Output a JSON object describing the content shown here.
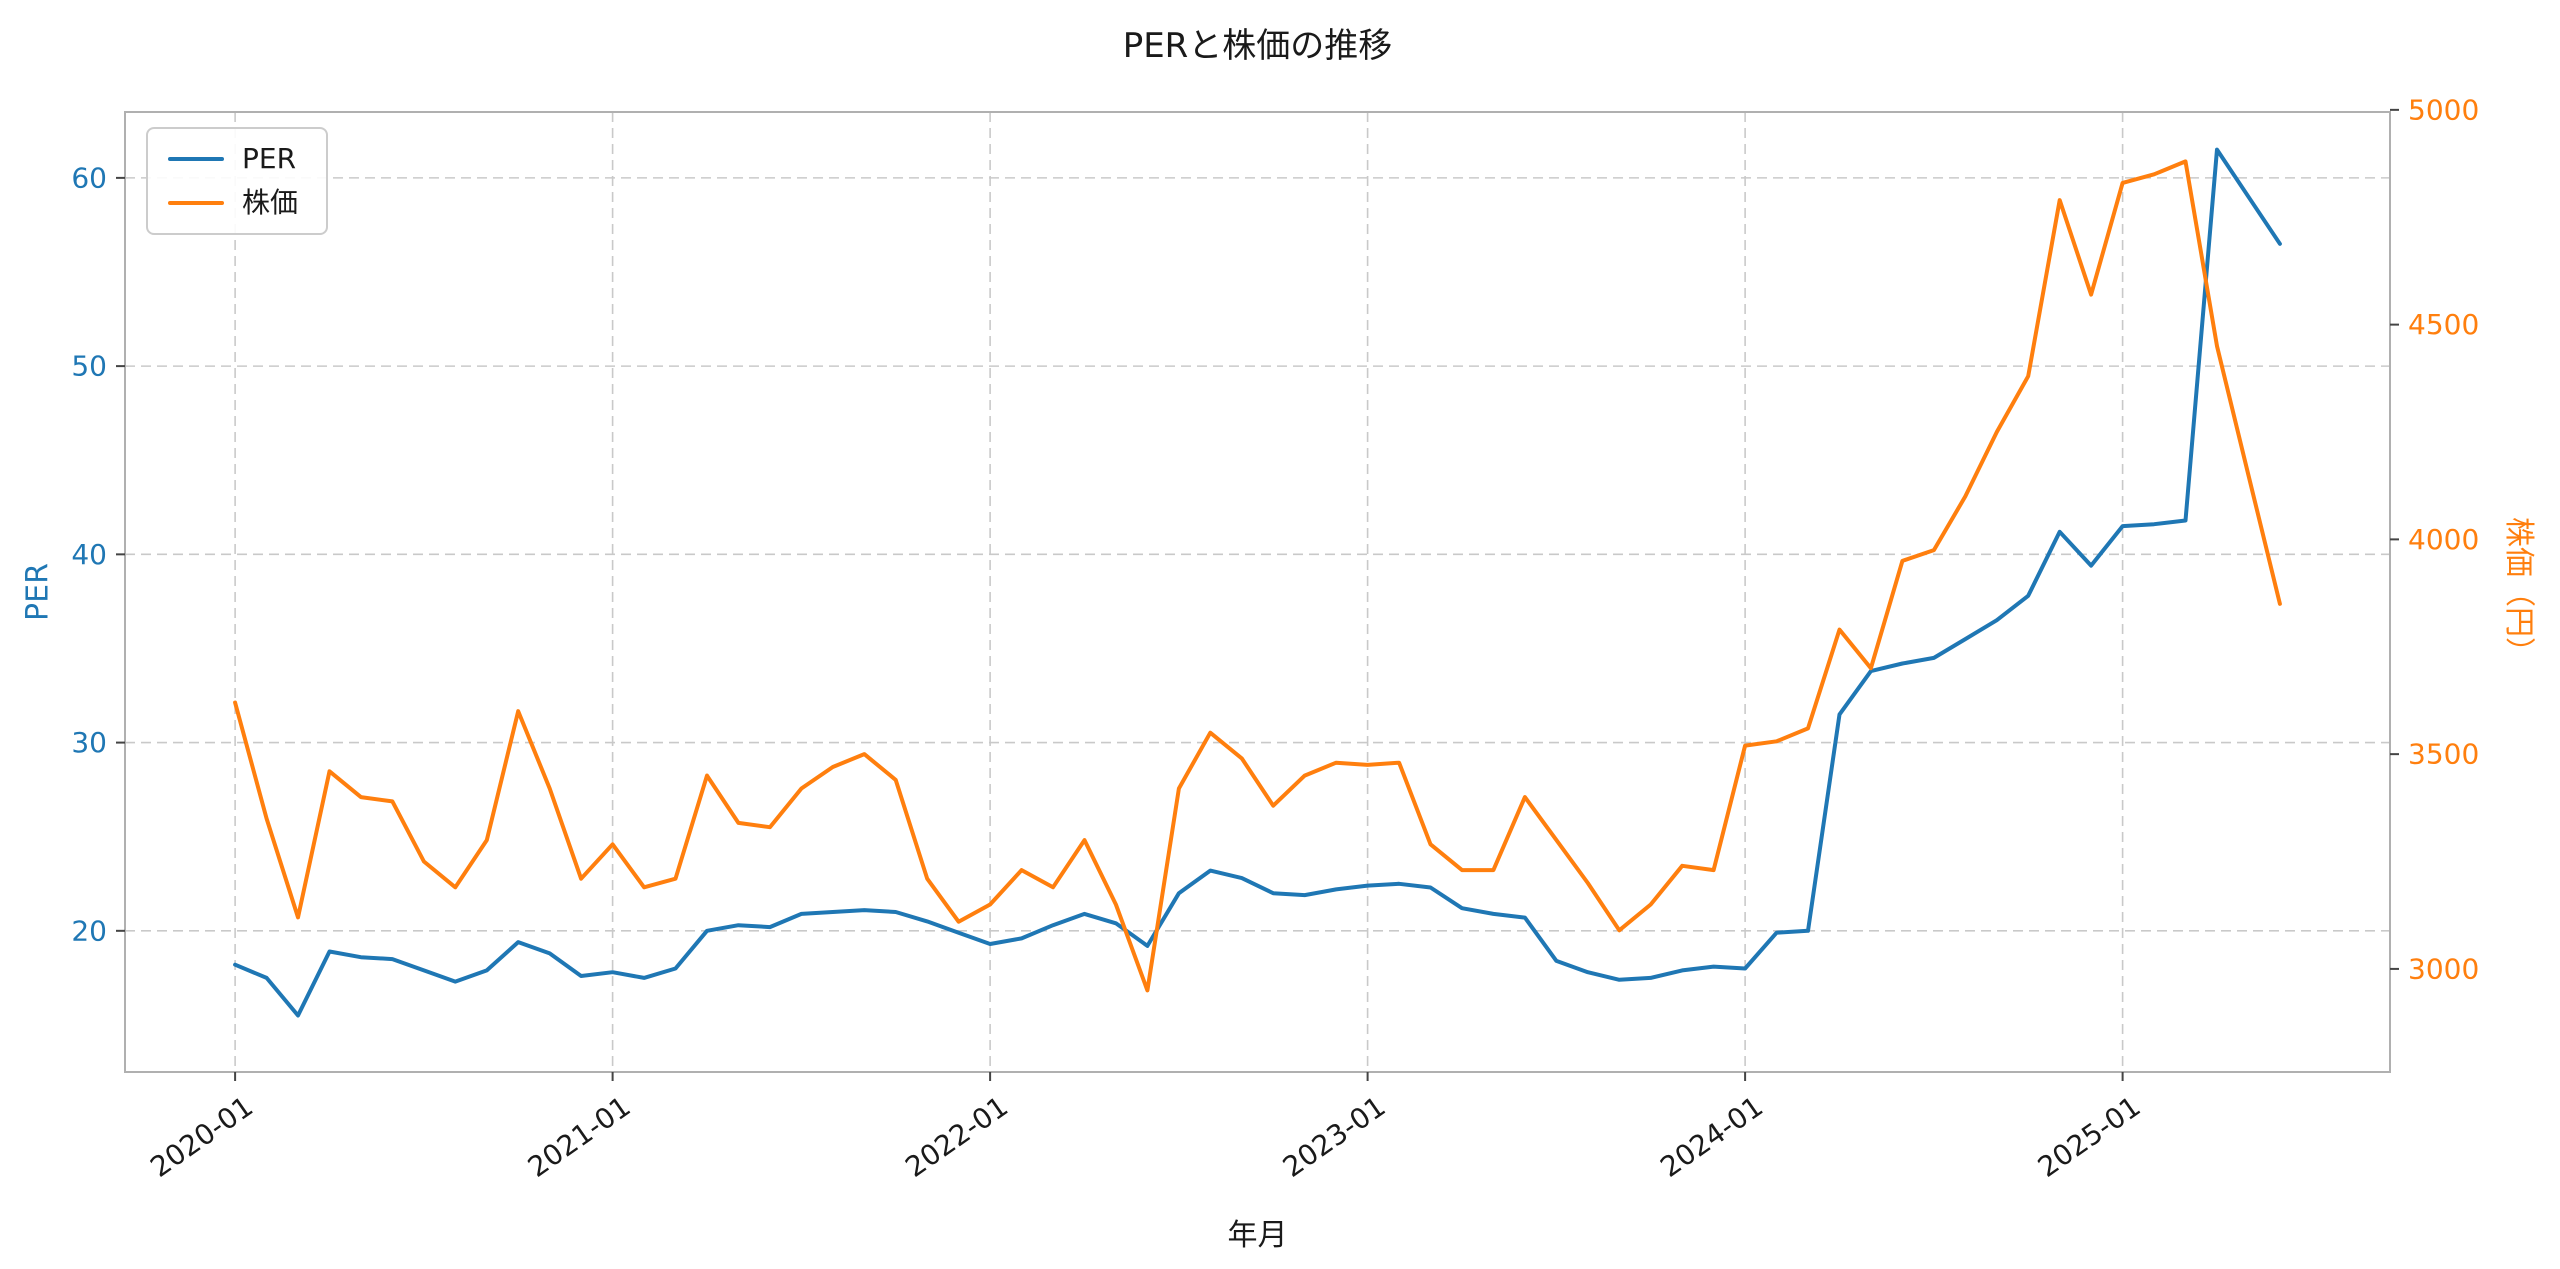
{
  "colors": {
    "per_line": "#1f77b4",
    "price_line": "#ff7f0e",
    "grid": "#c9c9c9",
    "spine": "#b0b0b0",
    "tick": "#444444",
    "text": "#1a1a1a"
  },
  "chart_data": {
    "type": "line",
    "title": "PERと株価の推移",
    "xlabel": "年月",
    "ylabel_left": "PER",
    "ylabel_right": "株価（円）",
    "legend_position": "upper left",
    "grid": true,
    "grid_style": "dashed",
    "x_tick_labels": [
      "2020-01",
      "2021-01",
      "2022-01",
      "2023-01",
      "2024-01",
      "2025-01"
    ],
    "x_tick_positions": [
      0,
      12,
      24,
      36,
      48,
      60
    ],
    "y_ticks_left": [
      20,
      30,
      40,
      50,
      60
    ],
    "y_ticks_right": [
      3000,
      3500,
      4000,
      4500,
      5000
    ],
    "ylim_left": [
      12.5,
      63.5
    ],
    "ylim_right": [
      2760,
      4995
    ],
    "xlim": [
      -3.5,
      68.5
    ],
    "x": [
      "2020-01",
      "2020-02",
      "2020-03",
      "2020-04",
      "2020-05",
      "2020-06",
      "2020-07",
      "2020-08",
      "2020-09",
      "2020-10",
      "2020-11",
      "2020-12",
      "2021-01",
      "2021-02",
      "2021-03",
      "2021-04",
      "2021-05",
      "2021-06",
      "2021-07",
      "2021-08",
      "2021-09",
      "2021-10",
      "2021-11",
      "2021-12",
      "2022-01",
      "2022-02",
      "2022-03",
      "2022-04",
      "2022-05",
      "2022-06",
      "2022-07",
      "2022-08",
      "2022-09",
      "2022-10",
      "2022-11",
      "2022-12",
      "2023-01",
      "2023-02",
      "2023-03",
      "2023-04",
      "2023-05",
      "2023-06",
      "2023-07",
      "2023-08",
      "2023-09",
      "2023-10",
      "2023-11",
      "2023-12",
      "2024-01",
      "2024-02",
      "2024-03",
      "2024-04",
      "2024-05",
      "2024-06",
      "2024-07",
      "2024-08",
      "2024-09",
      "2024-10",
      "2024-11",
      "2024-12",
      "2025-01",
      "2025-02",
      "2025-03",
      "2025-04",
      "2025-05",
      "2025-06"
    ],
    "series": [
      {
        "name": "PER",
        "axis": "left",
        "color": "#1f77b4",
        "values": [
          18.2,
          17.5,
          15.5,
          18.9,
          18.6,
          18.5,
          17.9,
          17.3,
          17.9,
          19.4,
          18.8,
          17.6,
          17.8,
          17.5,
          18.0,
          20.0,
          20.3,
          20.2,
          20.9,
          21.0,
          21.1,
          21.0,
          20.5,
          19.9,
          19.3,
          19.6,
          20.3,
          20.9,
          20.4,
          19.2,
          22.0,
          23.2,
          22.8,
          22.0,
          21.9,
          22.2,
          22.4,
          22.5,
          22.3,
          21.2,
          20.9,
          20.7,
          18.4,
          17.8,
          17.4,
          17.5,
          17.9,
          18.1,
          18.0,
          19.9,
          20.0,
          31.5,
          33.8,
          34.2,
          34.5,
          35.5,
          36.5,
          37.8,
          41.2,
          39.4,
          41.5,
          41.6,
          41.8,
          61.5,
          59.0,
          56.5
        ]
      },
      {
        "name": "株価",
        "axis": "right",
        "color": "#ff7f0e",
        "values": [
          3620,
          3350,
          3120,
          3460,
          3400,
          3390,
          3250,
          3190,
          3300,
          3600,
          3420,
          3210,
          3290,
          3190,
          3210,
          3450,
          3340,
          3330,
          3420,
          3470,
          3500,
          3440,
          3210,
          3110,
          3150,
          3230,
          3190,
          3300,
          3150,
          2950,
          3420,
          3550,
          3490,
          3380,
          3450,
          3480,
          3475,
          3480,
          3290,
          3230,
          3230,
          3400,
          3300,
          3200,
          3090,
          3150,
          3240,
          3230,
          3520,
          3530,
          3560,
          3790,
          3700,
          3950,
          3975,
          4100,
          4250,
          4380,
          4790,
          4570,
          4830,
          4850,
          4880,
          4450,
          4150,
          3850
        ]
      }
    ]
  }
}
